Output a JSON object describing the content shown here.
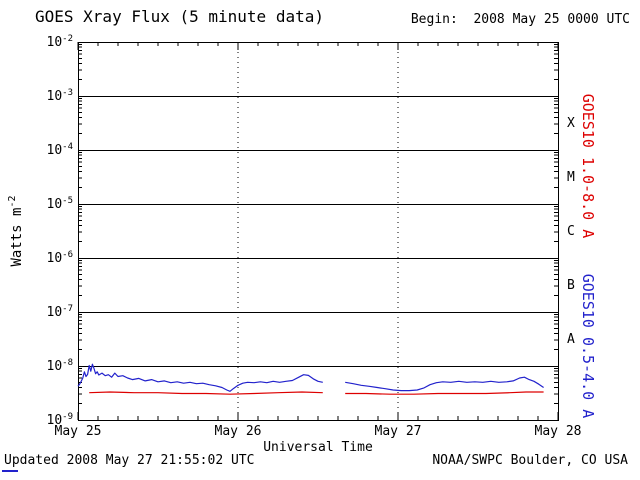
{
  "header": {
    "title": "GOES Xray Flux (5 minute data)",
    "begin_label": "Begin:  2008 May 25 0000 UTC"
  },
  "footer": {
    "updated": "Updated 2008 May 27 21:55:02 UTC",
    "attribution": "NOAA/SWPC Boulder, CO USA"
  },
  "colors": {
    "axis": "#000000",
    "background": "#ffffff",
    "long_channel": "#dd0000",
    "short_channel": "#2222cc"
  },
  "chart_data": {
    "type": "line",
    "title": "GOES Xray Flux (5 minute data)",
    "xlabel": "Universal Time",
    "ylabel": "Watts m-2",
    "ylabel_base": "Watts m",
    "ylabel_exp": "-2",
    "y_scale": "log",
    "x_axis": {
      "lim_days": [
        0,
        3
      ],
      "ticks": [
        {
          "day": 0,
          "label": "May 25"
        },
        {
          "day": 1,
          "label": "May 26"
        },
        {
          "day": 2,
          "label": "May 27"
        },
        {
          "day": 3,
          "label": "May 28"
        }
      ],
      "minor_tick_days": 0.125,
      "dotted_grid_days": [
        1,
        2
      ]
    },
    "y_axis": {
      "lim_exp": [
        -9,
        -2
      ],
      "tick_exponents": [
        -2,
        -3,
        -4,
        -5,
        -6,
        -7,
        -8,
        -9
      ]
    },
    "flare_classes": [
      {
        "label": "X",
        "log_center": -3.5
      },
      {
        "label": "M",
        "log_center": -4.5
      },
      {
        "label": "C",
        "log_center": -5.5
      },
      {
        "label": "B",
        "log_center": -6.5
      },
      {
        "label": "A",
        "log_center": -7.5
      }
    ],
    "series": [
      {
        "name": "GOES10 1.0-8.0 A",
        "channel": "1.0-8.0 A",
        "color": "#dd0000",
        "points": [
          [
            0.07,
            3.2e-09
          ],
          [
            0.2,
            3.3e-09
          ],
          [
            0.35,
            3.2e-09
          ],
          [
            0.5,
            3.2e-09
          ],
          [
            0.65,
            3.1e-09
          ],
          [
            0.8,
            3.1e-09
          ],
          [
            0.95,
            3e-09
          ],
          [
            1.1,
            3.1e-09
          ],
          [
            1.25,
            3.2e-09
          ],
          [
            1.4,
            3.3e-09
          ],
          [
            1.53,
            3.2e-09
          ],
          [
            1.55,
            null
          ],
          [
            1.67,
            3.1e-09
          ],
          [
            1.8,
            3.1e-09
          ],
          [
            1.95,
            3e-09
          ],
          [
            2.1,
            3e-09
          ],
          [
            2.25,
            3.1e-09
          ],
          [
            2.4,
            3.1e-09
          ],
          [
            2.55,
            3.1e-09
          ],
          [
            2.7,
            3.2e-09
          ],
          [
            2.8,
            3.3e-09
          ],
          [
            2.91,
            3.3e-09
          ]
        ]
      },
      {
        "name": "GOES10 0.5-4.0 A",
        "channel": "0.5-4.0 A",
        "color": "#2222cc",
        "points": [
          [
            0.0,
            4.2e-09
          ],
          [
            0.01,
            4.6e-09
          ],
          [
            0.02,
            5.2e-09
          ],
          [
            0.03,
            6e-09
          ],
          [
            0.04,
            7.8e-09
          ],
          [
            0.05,
            6.4e-09
          ],
          [
            0.06,
            7e-09
          ],
          [
            0.07,
            1.02e-08
          ],
          [
            0.08,
            8e-09
          ],
          [
            0.09,
            1.08e-08
          ],
          [
            0.1,
            9e-09
          ],
          [
            0.11,
            7.2e-09
          ],
          [
            0.12,
            7.8e-09
          ],
          [
            0.13,
            6.8e-09
          ],
          [
            0.15,
            7.4e-09
          ],
          [
            0.17,
            6.6e-09
          ],
          [
            0.19,
            6.9e-09
          ],
          [
            0.21,
            6.2e-09
          ],
          [
            0.23,
            7.4e-09
          ],
          [
            0.25,
            6.4e-09
          ],
          [
            0.28,
            6.6e-09
          ],
          [
            0.31,
            6e-09
          ],
          [
            0.34,
            5.6e-09
          ],
          [
            0.38,
            5.9e-09
          ],
          [
            0.42,
            5.3e-09
          ],
          [
            0.46,
            5.6e-09
          ],
          [
            0.5,
            5.1e-09
          ],
          [
            0.54,
            5.3e-09
          ],
          [
            0.58,
            4.9e-09
          ],
          [
            0.62,
            5.1e-09
          ],
          [
            0.66,
            4.8e-09
          ],
          [
            0.7,
            5e-09
          ],
          [
            0.74,
            4.7e-09
          ],
          [
            0.78,
            4.8e-09
          ],
          [
            0.82,
            4.5e-09
          ],
          [
            0.86,
            4.3e-09
          ],
          [
            0.9,
            4e-09
          ],
          [
            0.93,
            3.6e-09
          ],
          [
            0.95,
            3.4e-09
          ],
          [
            0.97,
            3.8e-09
          ],
          [
            1.0,
            4.4e-09
          ],
          [
            1.03,
            4.8e-09
          ],
          [
            1.06,
            5e-09
          ],
          [
            1.1,
            4.9e-09
          ],
          [
            1.14,
            5.1e-09
          ],
          [
            1.18,
            4.9e-09
          ],
          [
            1.22,
            5.2e-09
          ],
          [
            1.26,
            5e-09
          ],
          [
            1.3,
            5.2e-09
          ],
          [
            1.34,
            5.4e-09
          ],
          [
            1.38,
            6.2e-09
          ],
          [
            1.41,
            6.9e-09
          ],
          [
            1.44,
            6.7e-09
          ],
          [
            1.47,
            5.8e-09
          ],
          [
            1.5,
            5.2e-09
          ],
          [
            1.53,
            5e-09
          ],
          [
            1.55,
            null
          ],
          [
            1.67,
            5e-09
          ],
          [
            1.72,
            4.7e-09
          ],
          [
            1.77,
            4.4e-09
          ],
          [
            1.82,
            4.2e-09
          ],
          [
            1.87,
            4e-09
          ],
          [
            1.92,
            3.8e-09
          ],
          [
            1.97,
            3.6e-09
          ],
          [
            2.02,
            3.5e-09
          ],
          [
            2.07,
            3.5e-09
          ],
          [
            2.12,
            3.6e-09
          ],
          [
            2.16,
            3.9e-09
          ],
          [
            2.2,
            4.5e-09
          ],
          [
            2.24,
            4.9e-09
          ],
          [
            2.28,
            5.1e-09
          ],
          [
            2.33,
            5e-09
          ],
          [
            2.38,
            5.2e-09
          ],
          [
            2.43,
            5e-09
          ],
          [
            2.48,
            5.1e-09
          ],
          [
            2.53,
            5e-09
          ],
          [
            2.58,
            5.2e-09
          ],
          [
            2.63,
            5e-09
          ],
          [
            2.68,
            5.1e-09
          ],
          [
            2.72,
            5.3e-09
          ],
          [
            2.76,
            6e-09
          ],
          [
            2.79,
            6.2e-09
          ],
          [
            2.82,
            5.6e-09
          ],
          [
            2.85,
            5.2e-09
          ],
          [
            2.88,
            4.6e-09
          ],
          [
            2.91,
            4e-09
          ]
        ]
      }
    ]
  }
}
